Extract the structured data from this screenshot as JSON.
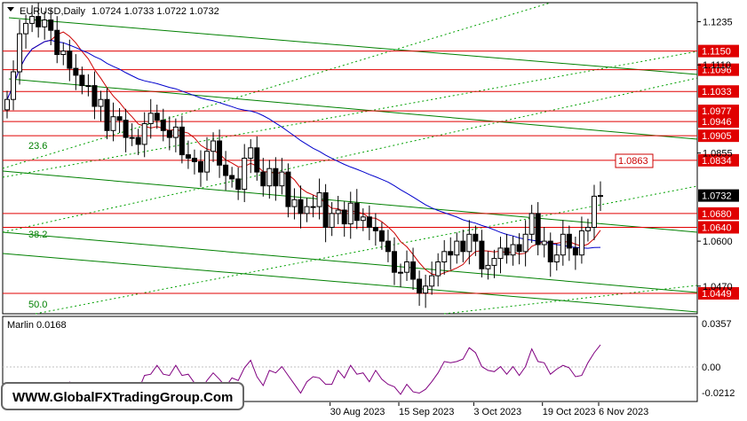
{
  "header": {
    "symbol": "EURUSD,Daily",
    "ohlc": "1.0724 1.0733 1.0722 1.0732"
  },
  "indicator": {
    "label": "Marlin 0.0168",
    "ticks": [
      "0.0357",
      "0.00",
      "-0.0212"
    ],
    "color": "#800080"
  },
  "watermark": "WWW.GlobalFXTradingGroup.Com",
  "chart_data": {
    "type": "candlestick",
    "y_range": [
      1.039,
      1.129
    ],
    "price_ticks": [
      "1.1235",
      "1.1110",
      "1.0855",
      "1.0600",
      "1.0470"
    ],
    "current_price": "1.0732",
    "x_labels": [
      "30 Aug 2023",
      "15 Sep 2023",
      "3 Oct 2023",
      "19 Oct 2023",
      "6 Nov 2023"
    ],
    "levels": [
      {
        "label": "1.1150",
        "value": 1.115
      },
      {
        "label": "1.1096",
        "value": 1.1096
      },
      {
        "label": "1.1033",
        "value": 1.1033
      },
      {
        "label": "1.0977",
        "value": 1.0977
      },
      {
        "label": "1.0946",
        "value": 1.0946
      },
      {
        "label": "1.0905",
        "value": 1.0905
      },
      {
        "label": "1.0834",
        "value": 1.0834
      },
      {
        "label": "1.0680",
        "value": 1.068
      },
      {
        "label": "1.0640",
        "value": 1.064
      },
      {
        "label": "1.0449",
        "value": 1.0449
      }
    ],
    "target_label": "1.0863",
    "fib_labels": [
      "23.6",
      "38.2",
      "50.0"
    ],
    "close": [
      1.101,
      1.109,
      1.12,
      1.123,
      1.125,
      1.122,
      1.124,
      1.121,
      1.114,
      1.115,
      1.11,
      1.108,
      1.105,
      1.105,
      1.099,
      1.101,
      1.092,
      1.096,
      1.095,
      1.09,
      1.09,
      1.088,
      1.094,
      1.097,
      1.095,
      1.092,
      1.09,
      1.093,
      1.085,
      1.084,
      1.083,
      1.08,
      1.086,
      1.089,
      1.082,
      1.079,
      1.078,
      1.075,
      1.084,
      1.087,
      1.08,
      1.076,
      1.081,
      1.076,
      1.08,
      1.07,
      1.072,
      1.068,
      1.07,
      1.07,
      1.074,
      1.064,
      1.068,
      1.069,
      1.065,
      1.071,
      1.066,
      1.067,
      1.064,
      1.063,
      1.06,
      1.057,
      1.051,
      1.051,
      1.054,
      1.049,
      1.045,
      1.047,
      1.05,
      1.054,
      1.057,
      1.056,
      1.06,
      1.057,
      1.062,
      1.06,
      1.052,
      1.053,
      1.055,
      1.058,
      1.056,
      1.059,
      1.057,
      1.062,
      1.068,
      1.059,
      1.06,
      1.054,
      1.056,
      1.062,
      1.058,
      1.056,
      1.063,
      1.064,
      1.073,
      1.0732
    ]
  }
}
